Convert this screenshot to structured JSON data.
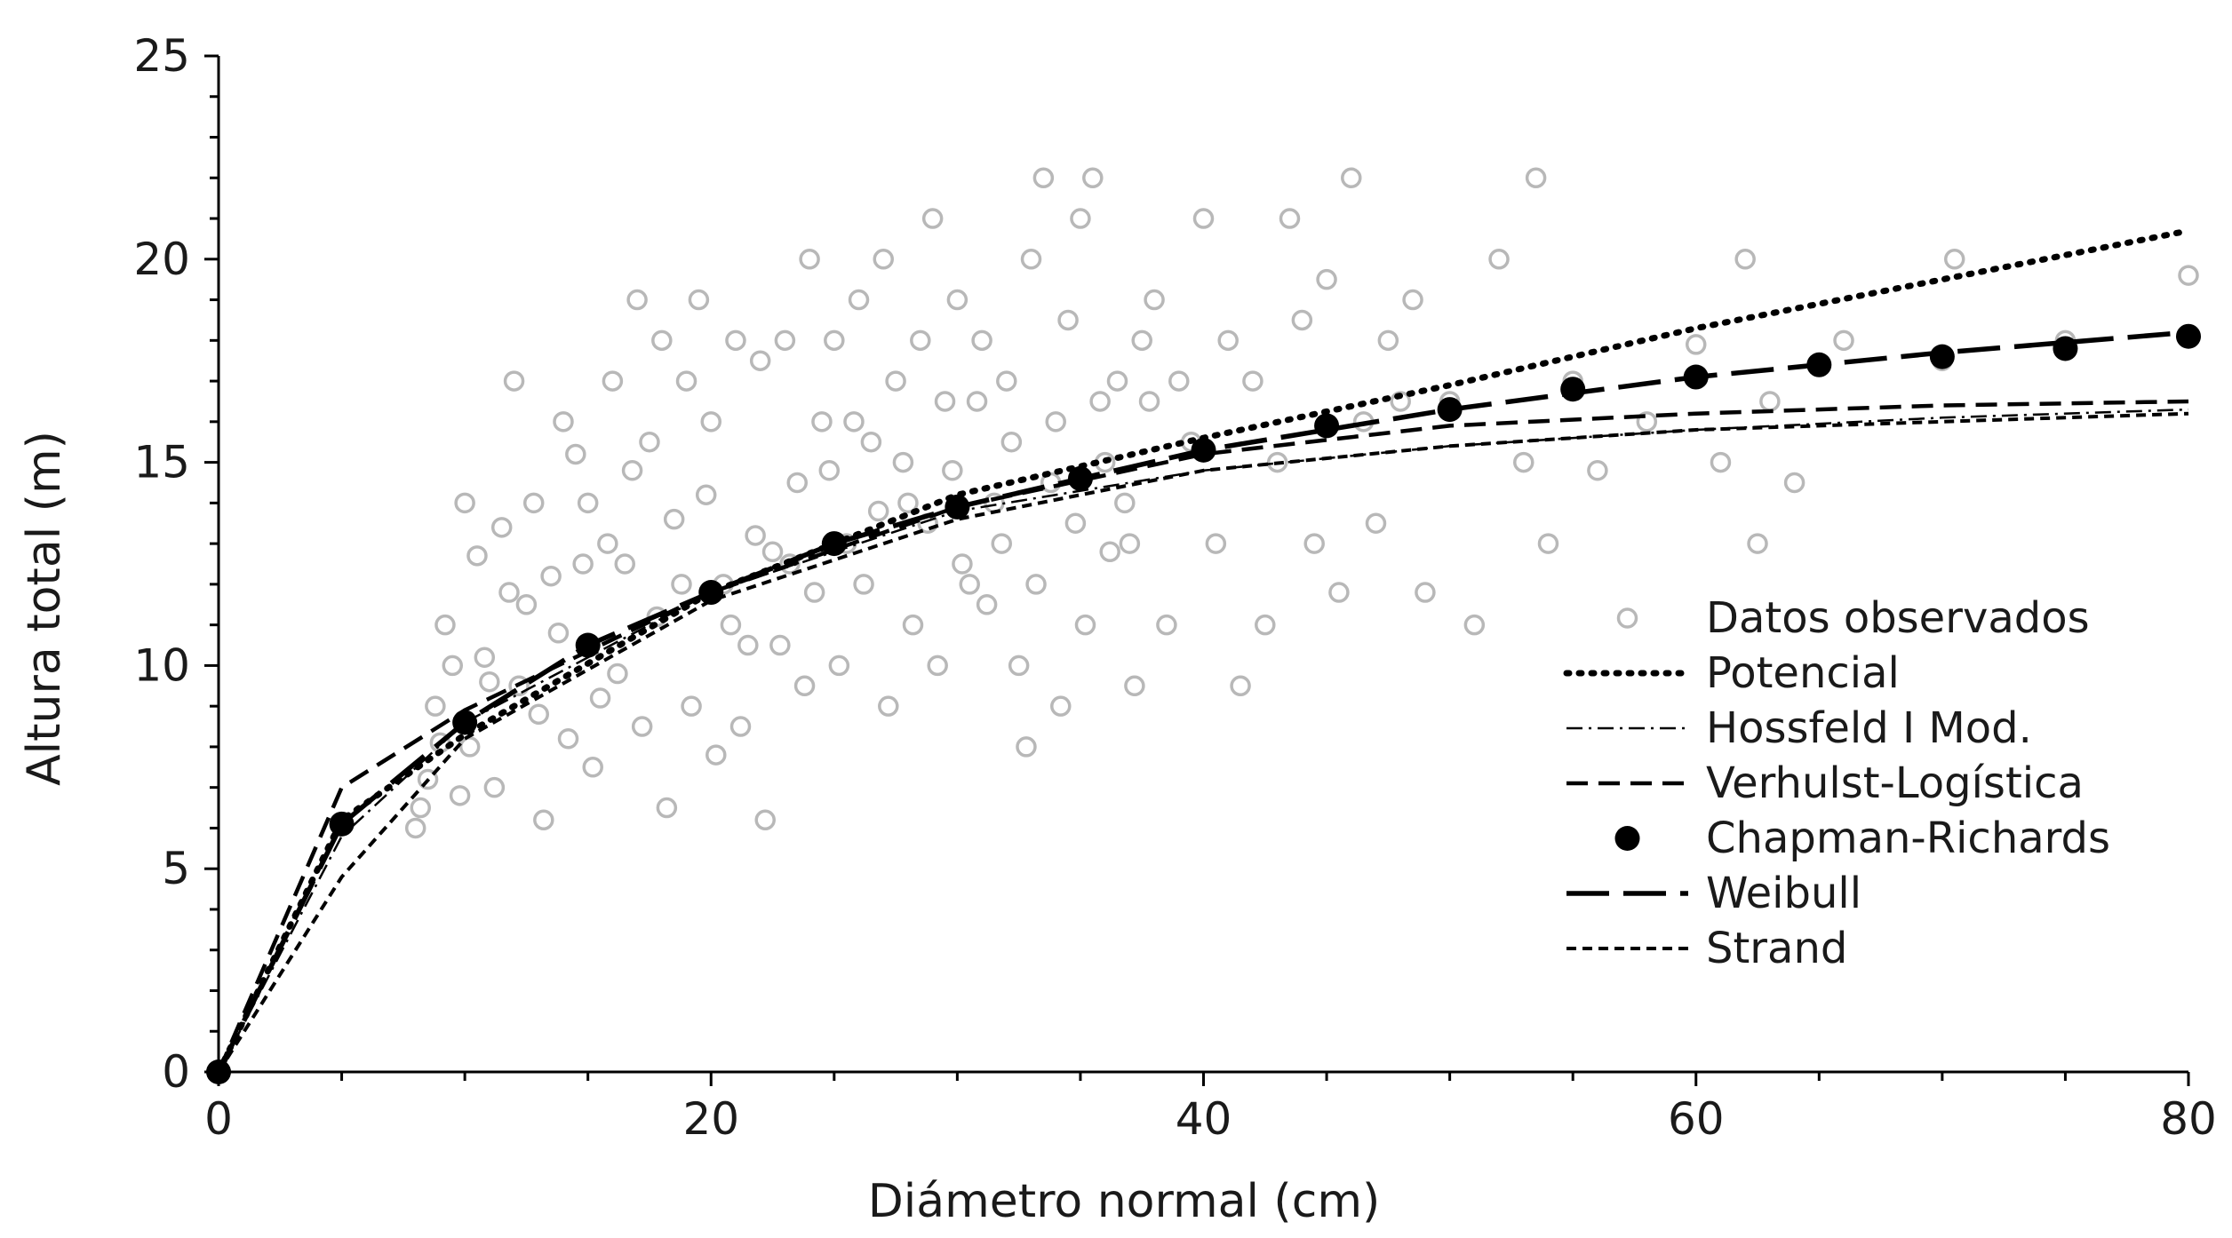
{
  "chart_data": {
    "type": "scatter",
    "title": "",
    "xlabel": "Diámetro normal (cm)",
    "ylabel": "Altura total (m)",
    "xlim": [
      0,
      80
    ],
    "ylim": [
      0,
      25
    ],
    "x_ticks": [
      0,
      20,
      40,
      60,
      80
    ],
    "y_ticks": [
      0,
      5,
      10,
      15,
      20,
      25
    ],
    "x_ticks_text": [
      "0",
      "20",
      "40",
      "60",
      "80"
    ],
    "y_ticks_text": [
      "0",
      "5",
      "10",
      "15",
      "20",
      "25"
    ],
    "grid": false,
    "legend_position": "right",
    "colors": {
      "observed": "#b8b8b8",
      "lines": "#000000"
    },
    "series": [
      {
        "name": "Datos observados",
        "kind": "scatter-open",
        "points": [
          [
            0,
            0
          ],
          [
            8,
            6
          ],
          [
            8.5,
            7.2
          ],
          [
            9,
            8.1
          ],
          [
            9.5,
            10
          ],
          [
            10,
            14
          ],
          [
            10.5,
            12.7
          ],
          [
            11,
            9.6
          ],
          [
            11.5,
            13.4
          ],
          [
            12,
            17
          ],
          [
            12.5,
            11.5
          ],
          [
            13,
            8.8
          ],
          [
            13.5,
            12.2
          ],
          [
            14,
            16
          ],
          [
            14.5,
            15.2
          ],
          [
            15,
            14
          ],
          [
            15.5,
            9.2
          ],
          [
            16,
            17
          ],
          [
            16.5,
            12.5
          ],
          [
            17,
            19
          ],
          [
            17.5,
            15.5
          ],
          [
            18,
            18
          ],
          [
            18.5,
            13.6
          ],
          [
            19,
            17
          ],
          [
            19.5,
            19
          ],
          [
            20,
            16
          ],
          [
            20.5,
            12
          ],
          [
            21,
            18
          ],
          [
            21.5,
            10.5
          ],
          [
            22,
            17.5
          ],
          [
            22.5,
            12.8
          ],
          [
            23,
            18
          ],
          [
            23.5,
            14.5
          ],
          [
            24,
            20
          ],
          [
            24.5,
            16
          ],
          [
            25,
            18
          ],
          [
            25.5,
            13
          ],
          [
            26,
            19
          ],
          [
            26.5,
            15.5
          ],
          [
            27,
            20
          ],
          [
            27.5,
            17
          ],
          [
            28,
            14
          ],
          [
            28.5,
            18
          ],
          [
            29,
            21
          ],
          [
            29.5,
            16.5
          ],
          [
            30,
            19
          ],
          [
            30.5,
            12
          ],
          [
            31,
            18
          ],
          [
            31.5,
            14
          ],
          [
            32,
            17
          ],
          [
            32.5,
            10
          ],
          [
            33,
            20
          ],
          [
            33.5,
            22
          ],
          [
            34,
            16
          ],
          [
            34.5,
            18.5
          ],
          [
            35,
            21
          ],
          [
            35.5,
            22
          ],
          [
            36,
            15
          ],
          [
            36.5,
            17
          ],
          [
            37,
            13
          ],
          [
            37.5,
            18
          ],
          [
            38,
            19
          ],
          [
            38.5,
            11
          ],
          [
            39,
            17
          ],
          [
            39.5,
            15.5
          ],
          [
            40,
            21
          ],
          [
            40.5,
            13
          ],
          [
            41,
            18
          ],
          [
            41.5,
            9.5
          ],
          [
            42,
            17
          ],
          [
            42.5,
            11
          ],
          [
            43,
            15
          ],
          [
            43.5,
            21
          ],
          [
            44,
            18.5
          ],
          [
            44.5,
            13
          ],
          [
            45,
            19.5
          ],
          [
            45.5,
            11.8
          ],
          [
            46,
            22
          ],
          [
            46.5,
            16
          ],
          [
            47,
            13.5
          ],
          [
            47.5,
            18
          ],
          [
            48,
            16.5
          ],
          [
            48.5,
            19
          ],
          [
            49,
            11.8
          ],
          [
            50,
            16.5
          ],
          [
            51,
            11
          ],
          [
            52,
            20
          ],
          [
            53,
            15
          ],
          [
            53.5,
            22
          ],
          [
            54,
            13
          ],
          [
            55,
            17
          ],
          [
            56,
            14.8
          ],
          [
            58,
            16
          ],
          [
            60,
            17.9
          ],
          [
            61,
            15
          ],
          [
            62,
            20
          ],
          [
            62.5,
            13
          ],
          [
            63,
            16.5
          ],
          [
            64,
            14.5
          ],
          [
            66,
            18
          ],
          [
            70,
            17.5
          ],
          [
            70.5,
            20
          ],
          [
            75,
            18
          ],
          [
            80,
            19.6
          ],
          [
            8.2,
            6.5
          ],
          [
            8.8,
            9
          ],
          [
            9.2,
            11
          ],
          [
            9.8,
            6.8
          ],
          [
            10.2,
            8
          ],
          [
            10.8,
            10.2
          ],
          [
            11.2,
            7
          ],
          [
            11.8,
            11.8
          ],
          [
            12.2,
            9.5
          ],
          [
            12.8,
            14
          ],
          [
            13.2,
            6.2
          ],
          [
            13.8,
            10.8
          ],
          [
            14.2,
            8.2
          ],
          [
            14.8,
            12.5
          ],
          [
            15.2,
            7.5
          ],
          [
            15.8,
            13
          ],
          [
            16.2,
            9.8
          ],
          [
            16.8,
            14.8
          ],
          [
            17.2,
            8.5
          ],
          [
            17.8,
            11.2
          ],
          [
            18.2,
            6.5
          ],
          [
            18.8,
            12
          ],
          [
            19.2,
            9
          ],
          [
            19.8,
            14.2
          ],
          [
            20.2,
            7.8
          ],
          [
            20.8,
            11
          ],
          [
            21.2,
            8.5
          ],
          [
            21.8,
            13.2
          ],
          [
            22.2,
            6.2
          ],
          [
            22.8,
            10.5
          ],
          [
            23.2,
            12.5
          ],
          [
            23.8,
            9.5
          ],
          [
            24.2,
            11.8
          ],
          [
            24.8,
            14.8
          ],
          [
            25.2,
            10
          ],
          [
            25.8,
            16
          ],
          [
            26.2,
            12
          ],
          [
            26.8,
            13.8
          ],
          [
            27.2,
            9
          ],
          [
            27.8,
            15
          ],
          [
            28.2,
            11
          ],
          [
            28.8,
            13.5
          ],
          [
            29.2,
            10
          ],
          [
            29.8,
            14.8
          ],
          [
            30.2,
            12.5
          ],
          [
            30.8,
            16.5
          ],
          [
            31.2,
            11.5
          ],
          [
            31.8,
            13
          ],
          [
            32.2,
            15.5
          ],
          [
            32.8,
            8
          ],
          [
            33.2,
            12
          ],
          [
            33.8,
            14.5
          ],
          [
            34.2,
            9
          ],
          [
            34.8,
            13.5
          ],
          [
            35.2,
            11
          ],
          [
            35.8,
            16.5
          ],
          [
            36.2,
            12.8
          ],
          [
            36.8,
            14
          ],
          [
            37.2,
            9.5
          ],
          [
            37.8,
            16.5
          ]
        ]
      },
      {
        "name": "Potencial",
        "kind": "line-dotted",
        "points": [
          [
            0,
            0
          ],
          [
            5,
            6.2
          ],
          [
            10,
            8.3
          ],
          [
            20,
            11.8
          ],
          [
            30,
            14.2
          ],
          [
            40,
            15.6
          ],
          [
            50,
            16.9
          ],
          [
            60,
            18.3
          ],
          [
            70,
            19.5
          ],
          [
            80,
            20.7
          ]
        ]
      },
      {
        "name": "Hossfeld I Mod.",
        "kind": "line-dashdot",
        "points": [
          [
            0,
            0
          ],
          [
            5,
            5.8
          ],
          [
            10,
            8.6
          ],
          [
            20,
            11.8
          ],
          [
            30,
            13.8
          ],
          [
            40,
            14.8
          ],
          [
            50,
            15.4
          ],
          [
            60,
            15.8
          ],
          [
            70,
            16.1
          ],
          [
            80,
            16.3
          ]
        ]
      },
      {
        "name": "Verhulst-Logística",
        "kind": "line-dashed",
        "points": [
          [
            0,
            0
          ],
          [
            5,
            7
          ],
          [
            10,
            8.9
          ],
          [
            20,
            11.8
          ],
          [
            30,
            13.9
          ],
          [
            40,
            15.2
          ],
          [
            50,
            15.9
          ],
          [
            60,
            16.2
          ],
          [
            70,
            16.4
          ],
          [
            80,
            16.5
          ]
        ]
      },
      {
        "name": "Chapman-Richards",
        "kind": "markers-filled",
        "points": [
          [
            0,
            0
          ],
          [
            5,
            6.1
          ],
          [
            10,
            8.6
          ],
          [
            15,
            10.5
          ],
          [
            20,
            11.8
          ],
          [
            25,
            13
          ],
          [
            30,
            13.9
          ],
          [
            35,
            14.6
          ],
          [
            40,
            15.3
          ],
          [
            45,
            15.9
          ],
          [
            50,
            16.3
          ],
          [
            55,
            16.8
          ],
          [
            60,
            17.1
          ],
          [
            65,
            17.4
          ],
          [
            70,
            17.6
          ],
          [
            75,
            17.8
          ],
          [
            80,
            18.1
          ]
        ]
      },
      {
        "name": "Weibull",
        "kind": "line-longdash",
        "points": [
          [
            0,
            0
          ],
          [
            5,
            6.1
          ],
          [
            10,
            8.6
          ],
          [
            15,
            10.5
          ],
          [
            20,
            11.8
          ],
          [
            25,
            13
          ],
          [
            30,
            13.9
          ],
          [
            35,
            14.6
          ],
          [
            40,
            15.3
          ],
          [
            50,
            16.3
          ],
          [
            60,
            17.1
          ],
          [
            70,
            17.7
          ],
          [
            80,
            18.2
          ]
        ]
      },
      {
        "name": "Strand",
        "kind": "line-shortdash",
        "points": [
          [
            0,
            0
          ],
          [
            5,
            4.8
          ],
          [
            10,
            8.2
          ],
          [
            20,
            11.6
          ],
          [
            30,
            13.6
          ],
          [
            40,
            14.8
          ],
          [
            50,
            15.4
          ],
          [
            60,
            15.8
          ],
          [
            70,
            16
          ],
          [
            80,
            16.2
          ]
        ]
      }
    ]
  }
}
